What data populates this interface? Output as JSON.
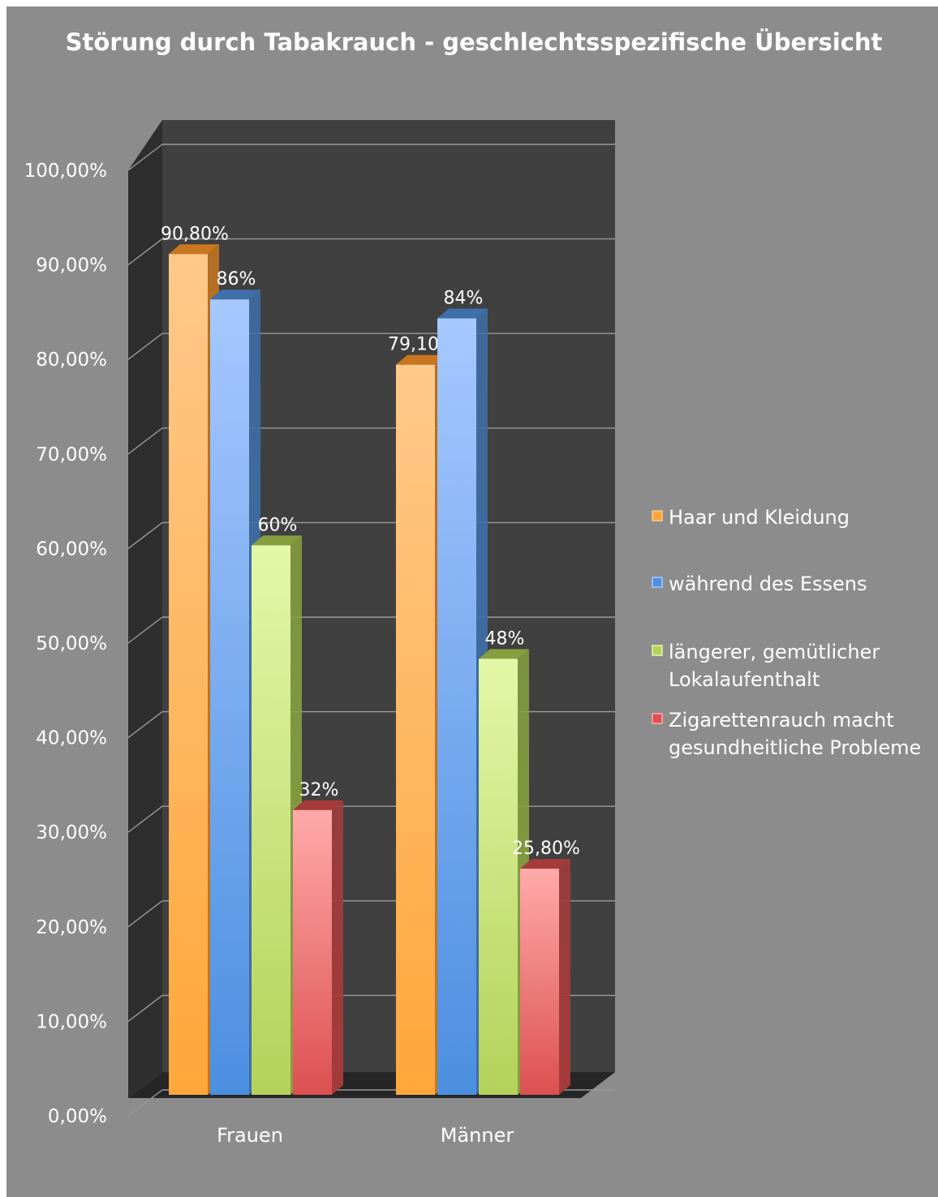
{
  "chart_data": {
    "type": "bar",
    "title": "Störung durch Tabakrauch - geschlechtsspezifische Übersicht",
    "categories": [
      "Frauen",
      "Männer"
    ],
    "series": [
      {
        "name": "Haar und Kleidung",
        "values": [
          90.8,
          79.1
        ],
        "labels": [
          "90,80%",
          "79,10%"
        ],
        "color": "#ffa73a",
        "color_light": "#ffc98a",
        "color_dark": "#c9771f"
      },
      {
        "name": "während des Essens",
        "values": [
          86,
          84
        ],
        "labels": [
          "86%",
          "84%"
        ],
        "color": "#4c8fe0",
        "color_light": "#a6c8ff",
        "color_dark": "#3f6fa8"
      },
      {
        "name": "längerer, gemütlicher Lokalaufenthalt",
        "values": [
          60,
          48
        ],
        "labels": [
          "60%",
          "48%"
        ],
        "color": "#b4d25a",
        "color_light": "#e4f7a8",
        "color_dark": "#86a040"
      },
      {
        "name": "Zigarettenrauch macht gesundheitliche Probleme",
        "values": [
          32,
          25.8
        ],
        "labels": [
          "32%",
          "25,80%"
        ],
        "color": "#dc5050",
        "color_light": "#ffaaaa",
        "color_dark": "#a53b3b"
      }
    ],
    "legend_lines": [
      [
        "Haar und Kleidung"
      ],
      [
        "während des Essens"
      ],
      [
        "längerer, gemütlicher",
        "Lokalaufenthalt"
      ],
      [
        "Zigarettenrauch macht",
        "gesundheitliche Probleme"
      ]
    ],
    "yticks": [
      "0,00%",
      "10,00%",
      "20,00%",
      "30,00%",
      "40,00%",
      "50,00%",
      "60,00%",
      "70,00%",
      "80,00%",
      "90,00%",
      "100,00%"
    ],
    "ylim": [
      0,
      100
    ],
    "grid": true,
    "legend_position": "right",
    "background_color": "#8c8c8c",
    "plot_color": "#404040"
  }
}
